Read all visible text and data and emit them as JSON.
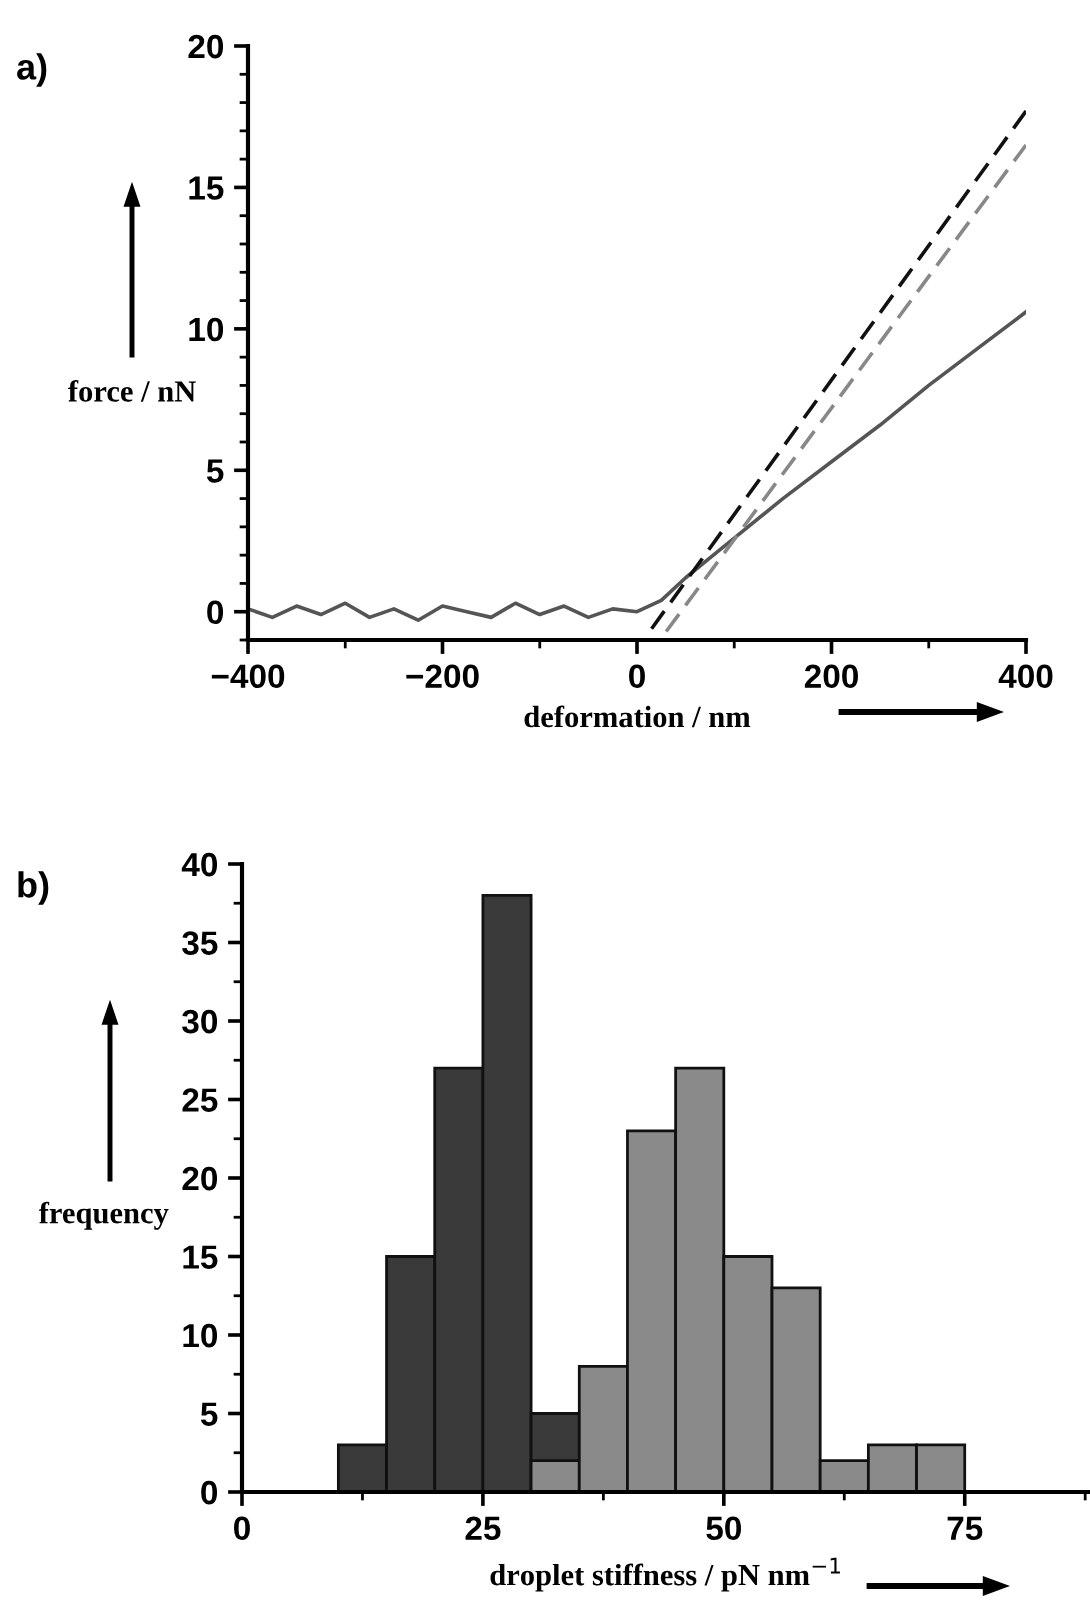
{
  "chart_data": [
    {
      "type": "line",
      "title": "a)",
      "xlabel": "deformation / nm",
      "ylabel": "force / nN",
      "xlim": [
        -400,
        400
      ],
      "ylim": [
        -1,
        20
      ],
      "xticks": [
        {
          "value": -400,
          "label": "−400"
        },
        {
          "value": -200,
          "label": "−200"
        },
        0,
        200,
        400
      ],
      "yticks": [
        0,
        5,
        10,
        15,
        20
      ],
      "grid": false,
      "legend": false,
      "series": [
        {
          "color": "#555555",
          "line_style": "solid",
          "x": [
            -400,
            -375,
            -350,
            -325,
            -300,
            -275,
            -250,
            -225,
            -200,
            -175,
            -150,
            -125,
            -100,
            -75,
            -50,
            -25,
            0,
            25,
            50,
            75,
            100,
            150,
            200,
            250,
            300,
            350,
            400
          ],
          "values": [
            0.1,
            -0.2,
            0.2,
            -0.1,
            0.3,
            -0.2,
            0.1,
            -0.3,
            0.2,
            0,
            -0.2,
            0.3,
            -0.1,
            0.2,
            -0.2,
            0.1,
            0,
            0.4,
            1.2,
            1.9,
            2.6,
            4.0,
            5.3,
            6.6,
            8.0,
            9.3,
            10.6
          ]
        },
        {
          "color": "#111111",
          "line_style": "dashed",
          "x": [
            15,
            400
          ],
          "values": [
            -0.6,
            17.7
          ]
        },
        {
          "color": "#888888",
          "line_style": "dashed",
          "x": [
            30,
            400
          ],
          "values": [
            -0.7,
            16.5
          ]
        }
      ]
    },
    {
      "type": "histogram",
      "title": "b)",
      "xlabel": "droplet stiffness / pN nm$^{−1}$",
      "ylabel": "frequency",
      "bins": [
        10,
        15,
        20,
        25,
        30,
        35,
        40,
        45,
        50,
        55,
        60,
        65,
        70,
        75
      ],
      "xlim": [
        0,
        88
      ],
      "ylim": [
        0,
        40
      ],
      "xticks": [
        0,
        25,
        50,
        75
      ],
      "yticks": [
        0,
        5,
        10,
        15,
        20,
        25,
        30,
        35,
        40
      ],
      "grid": false,
      "legend": false,
      "series": [
        {
          "color": "#3a3a3a",
          "values": [
            3,
            15,
            27,
            38,
            5,
            null,
            null,
            null,
            null,
            null,
            null,
            null,
            null
          ]
        },
        {
          "color": "#8a8a8a",
          "values": [
            null,
            null,
            null,
            null,
            2,
            8,
            23,
            27,
            15,
            13,
            2,
            3,
            3
          ]
        }
      ]
    }
  ]
}
